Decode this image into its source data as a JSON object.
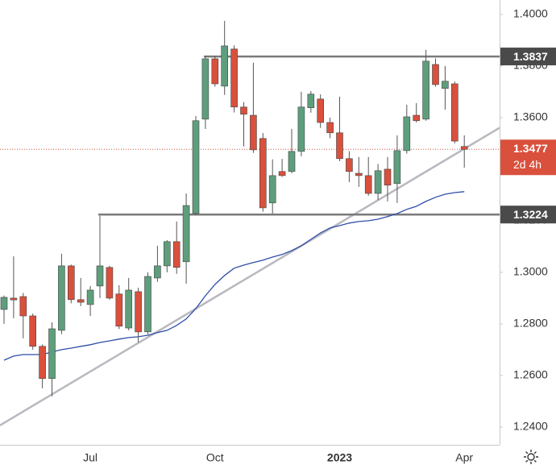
{
  "chart_data": {
    "type": "candlestick",
    "categories": [
      null,
      null,
      null,
      null,
      null,
      null,
      null,
      null,
      null,
      "Jul",
      null,
      null,
      null,
      null,
      null,
      null,
      null,
      null,
      null,
      null,
      null,
      null,
      "Oct",
      null,
      null,
      null,
      null,
      null,
      null,
      null,
      null,
      null,
      null,
      null,
      null,
      "2023",
      null,
      null,
      null,
      null,
      null,
      null,
      null,
      null,
      null,
      null,
      null,
      null,
      "Apr"
    ],
    "open": [
      1.2856,
      1.29,
      1.2906,
      1.2831,
      1.2713,
      1.2588,
      1.2775,
      1.3025,
      1.2894,
      1.2875,
      1.2947,
      1.3019,
      1.2916,
      1.2784,
      1.2925,
      1.2769,
      1.2978,
      1.3025,
      1.3119,
      1.3041,
      1.3228,
      1.3594,
      1.3828,
      1.3722,
      1.3866,
      1.3641,
      1.3609,
      1.3519,
      1.3269,
      1.3391,
      1.3391,
      1.3469,
      1.3638,
      1.3672,
      1.3581,
      1.3541,
      1.3441,
      1.3384,
      1.3375,
      1.3306,
      1.34,
      1.3344,
      1.3472,
      1.3609,
      1.3594,
      1.3806,
      1.3713,
      1.3731,
      1.3488
    ],
    "high": [
      1.291,
      1.3062,
      1.292,
      1.284,
      1.272,
      1.2806,
      1.3072,
      1.303,
      1.2978,
      1.2947,
      1.3219,
      1.3025,
      1.295,
      1.2978,
      1.294,
      1.3,
      1.3103,
      1.3125,
      1.3197,
      1.3306,
      1.3606,
      1.3838,
      1.384,
      1.3975,
      1.388,
      1.366,
      1.3813,
      1.354,
      1.3438,
      1.344,
      1.3556,
      1.37,
      1.3703,
      1.369,
      1.36,
      1.3681,
      1.347,
      1.3447,
      1.3447,
      1.342,
      1.3447,
      1.3531,
      1.365,
      1.3656,
      1.3863,
      1.383,
      1.38,
      1.374,
      1.3531
    ],
    "low": [
      1.28,
      1.2822,
      1.2744,
      1.27,
      1.255,
      1.2519,
      1.276,
      1.288,
      1.2869,
      1.2831,
      1.29,
      1.2894,
      1.278,
      1.2775,
      1.2728,
      1.276,
      1.2963,
      1.3,
      1.2994,
      1.2956,
      1.3222,
      1.3556,
      1.372,
      1.3688,
      1.362,
      1.3488,
      1.3463,
      1.3235,
      1.3228,
      1.337,
      1.3384,
      1.345,
      1.3619,
      1.356,
      1.352,
      1.3431,
      1.335,
      1.3331,
      1.3297,
      1.328,
      1.3275,
      1.3269,
      1.346,
      1.3581,
      1.3588,
      1.372,
      1.3631,
      1.35,
      1.3406
    ],
    "close": [
      1.2903,
      1.2893,
      1.2831,
      1.2713,
      1.2588,
      1.2781,
      1.3025,
      1.2894,
      1.2884,
      1.2931,
      1.3025,
      1.29,
      1.2791,
      1.2931,
      1.2769,
      1.2984,
      1.3025,
      1.3119,
      1.3019,
      1.3259,
      1.3588,
      1.3828,
      1.3731,
      1.3878,
      1.3641,
      1.3613,
      1.3475,
      1.325,
      1.3375,
      1.3375,
      1.3469,
      1.3641,
      1.3691,
      1.3581,
      1.3541,
      1.3441,
      1.3391,
      1.3375,
      1.3306,
      1.3394,
      1.3338,
      1.3472,
      1.3603,
      1.3588,
      1.3819,
      1.3728,
      1.3741,
      1.3509,
      1.3477
    ],
    "moving_average": [
      1.2659,
      1.2675,
      1.2681,
      1.2681,
      1.2681,
      1.2691,
      1.27,
      1.2706,
      1.2713,
      1.2719,
      1.2728,
      1.2734,
      1.2741,
      1.2747,
      1.275,
      1.2756,
      1.2766,
      1.2775,
      1.2794,
      1.2819,
      1.2859,
      1.2909,
      1.2953,
      1.2988,
      1.3016,
      1.3028,
      1.3038,
      1.3047,
      1.3059,
      1.3069,
      1.3084,
      1.3103,
      1.3128,
      1.3153,
      1.3172,
      1.3181,
      1.3191,
      1.3197,
      1.32,
      1.3206,
      1.3216,
      1.3228,
      1.3244,
      1.3256,
      1.3275,
      1.3291,
      1.3303,
      1.3309,
      1.3313
    ],
    "ma_color": "#2f4ea8",
    "trendline": [
      1.2416,
      1.3479
    ],
    "trendline_color": "#b8b8c0",
    "up_color": "#5e9e7c",
    "down_color": "#d9503c",
    "levels": [
      {
        "value": 1.3837,
        "label": "1.3837"
      },
      {
        "value": 1.3224,
        "label": "1.3224"
      }
    ],
    "level_color": "#7a7a7a",
    "last_price": {
      "value": 1.3477,
      "label": "1.3477",
      "countdown": "2d 4h"
    },
    "ylim": [
      1.2331,
      1.4056
    ],
    "yticks": [
      {
        "value": 1.24,
        "label": "1.2400"
      },
      {
        "value": 1.26,
        "label": "1.2600"
      },
      {
        "value": 1.28,
        "label": "1.2800"
      },
      {
        "value": 1.3,
        "label": "1.3000"
      },
      {
        "value": 1.32,
        "label": "1.3200"
      },
      {
        "value": 1.34,
        "label": "1.3400"
      },
      {
        "value": 1.36,
        "label": "1.3600"
      },
      {
        "value": 1.38,
        "label": "1.3800"
      },
      {
        "value": 1.4,
        "label": "1.4000"
      }
    ]
  }
}
